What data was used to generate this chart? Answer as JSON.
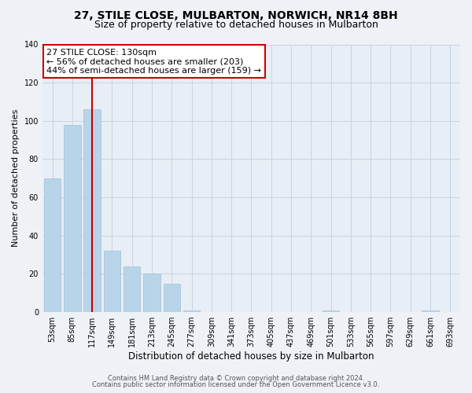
{
  "title": "27, STILE CLOSE, MULBARTON, NORWICH, NR14 8BH",
  "subtitle": "Size of property relative to detached houses in Mulbarton",
  "xlabel": "Distribution of detached houses by size in Mulbarton",
  "ylabel": "Number of detached properties",
  "bar_labels": [
    "53sqm",
    "85sqm",
    "117sqm",
    "149sqm",
    "181sqm",
    "213sqm",
    "245sqm",
    "277sqm",
    "309sqm",
    "341sqm",
    "373sqm",
    "405sqm",
    "437sqm",
    "469sqm",
    "501sqm",
    "533sqm",
    "565sqm",
    "597sqm",
    "629sqm",
    "661sqm",
    "693sqm"
  ],
  "bar_values": [
    70,
    98,
    106,
    32,
    24,
    20,
    15,
    1,
    0,
    0,
    0,
    0,
    0,
    0,
    1,
    0,
    0,
    0,
    0,
    1,
    0
  ],
  "bar_color": "#b8d4e8",
  "vline_index": 2,
  "vline_color": "#cc0000",
  "ylim": [
    0,
    140
  ],
  "yticks": [
    0,
    20,
    40,
    60,
    80,
    100,
    120,
    140
  ],
  "annotation_title": "27 STILE CLOSE: 130sqm",
  "annotation_line1": "← 56% of detached houses are smaller (203)",
  "annotation_line2": "44% of semi-detached houses are larger (159) →",
  "annotation_box_color": "#ffffff",
  "annotation_box_edgecolor": "#cc0000",
  "background_color": "#eef2f7",
  "plot_background": "#e8eef5",
  "grid_color": "#c8d4e0",
  "footer1": "Contains HM Land Registry data © Crown copyright and database right 2024.",
  "footer2": "Contains public sector information licensed under the Open Government Licence v3.0.",
  "title_fontsize": 10,
  "subtitle_fontsize": 9,
  "xlabel_fontsize": 8.5,
  "ylabel_fontsize": 8,
  "tick_fontsize": 7,
  "annotation_fontsize": 8,
  "footer_fontsize": 6
}
